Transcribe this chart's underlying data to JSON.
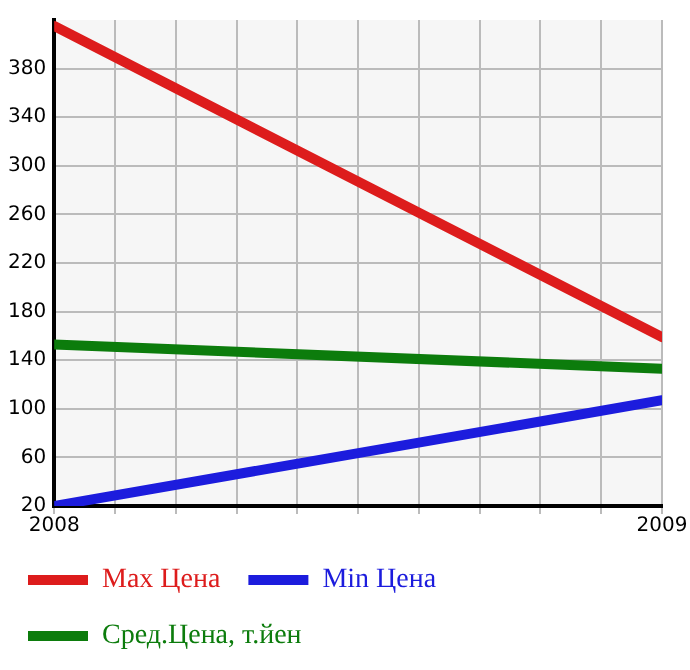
{
  "chart_data": {
    "type": "line",
    "x": [
      2008,
      2009
    ],
    "series": [
      {
        "name": "Max Цена",
        "color": "#dd1c1c",
        "values": [
          415,
          159
        ]
      },
      {
        "name": "Min Цена",
        "color": "#1c1cdd",
        "values": [
          20,
          107
        ]
      },
      {
        "name": "Сред.Цена, т.йен",
        "color": "#0c7c0c",
        "values": [
          153,
          133
        ]
      }
    ],
    "xlim": [
      2008,
      2009
    ],
    "xticks": [
      2008,
      {
        "value": 2008.1,
        "label": null
      },
      {
        "value": 2008.2,
        "label": null
      },
      {
        "value": 2008.3,
        "label": null
      },
      {
        "value": 2008.4,
        "label": null
      },
      {
        "value": 2008.5,
        "label": null
      },
      {
        "value": 2008.6,
        "label": null
      },
      {
        "value": 2008.7,
        "label": null
      },
      {
        "value": 2008.8,
        "label": null
      },
      {
        "value": 2008.9,
        "label": null
      },
      2009
    ],
    "ylim": [
      20,
      420
    ],
    "yticks": [
      20,
      60,
      100,
      140,
      180,
      220,
      260,
      300,
      340,
      380
    ],
    "grid": true,
    "legend": "bottom",
    "marker": "none",
    "line_style": "solid"
  }
}
